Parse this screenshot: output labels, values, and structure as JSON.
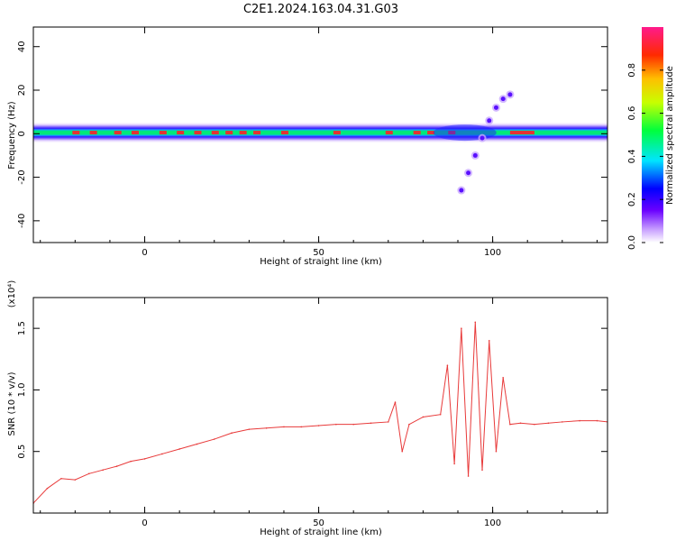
{
  "figure": {
    "title": "C2E1.2024.163.04.31.G03"
  },
  "colors": {
    "signal": "#e83a3a",
    "band_core": "#e63232",
    "band_mid": "#00e676",
    "band_edge": "#2020ff",
    "band_halo": "#c8a8ff"
  },
  "chart_data": [
    {
      "type": "heatmap",
      "title": "C2E1.2024.163.04.31.G03",
      "xlabel": "Height of straight line (km)",
      "ylabel": "Frequency (Hz)",
      "xlim": [
        -32,
        133
      ],
      "ylim": [
        -50,
        49
      ],
      "xticks": [
        "0",
        "50",
        "100"
      ],
      "xtick_values": [
        0,
        50,
        100
      ],
      "yticks": [
        "40",
        "20",
        "0",
        "-20",
        "-40"
      ],
      "ytick_values": [
        40,
        20,
        0,
        -20,
        -40
      ],
      "colorbar": {
        "label": "Normalized spectral amplitude",
        "range": [
          0,
          1
        ],
        "ticks": [
          "0.0",
          "0.2",
          "0.4",
          "0.6",
          "0.8"
        ],
        "tick_values": [
          0.0,
          0.2,
          0.4,
          0.6,
          0.8
        ],
        "colormap": "rainbow (magenta-blue-cyan-green-yellow-red-pink)"
      },
      "band": {
        "center_hz": 0.5,
        "description": "main spectral band near 0 Hz across full range; scattered oblique trace near 90-105 km",
        "oblique_trace": [
          {
            "x": 91,
            "y": -26
          },
          {
            "x": 93,
            "y": -18
          },
          {
            "x": 95,
            "y": -10
          },
          {
            "x": 97,
            "y": -2
          },
          {
            "x": 99,
            "y": 6
          },
          {
            "x": 101,
            "y": 12
          },
          {
            "x": 103,
            "y": 16
          },
          {
            "x": 105,
            "y": 18
          }
        ]
      },
      "grid": false
    },
    {
      "type": "line",
      "xlabel": "Height of straight line (km)",
      "ylabel": "SNR (10 * v/v)",
      "y_multiplier": "(x10⁴)",
      "xlim": [
        -32,
        133
      ],
      "ylim": [
        0,
        1.75
      ],
      "xticks": [
        "0",
        "50",
        "100"
      ],
      "xtick_values": [
        0,
        50,
        100
      ],
      "yticks": [
        "0.5",
        "1.0",
        "1.5"
      ],
      "ytick_values": [
        0.5,
        1.0,
        1.5
      ],
      "grid": false,
      "series": [
        {
          "color": "#e83a3a",
          "x": [
            -32,
            -28,
            -24,
            -20,
            -16,
            -12,
            -8,
            -4,
            0,
            5,
            10,
            15,
            20,
            25,
            30,
            35,
            40,
            45,
            50,
            55,
            60,
            65,
            70,
            72,
            74,
            76,
            80,
            85,
            87,
            89,
            91,
            93,
            95,
            97,
            99,
            101,
            103,
            105,
            108,
            112,
            116,
            120,
            125,
            130,
            133
          ],
          "y": [
            0.08,
            0.2,
            0.28,
            0.27,
            0.32,
            0.35,
            0.38,
            0.42,
            0.44,
            0.48,
            0.52,
            0.56,
            0.6,
            0.65,
            0.68,
            0.69,
            0.7,
            0.7,
            0.71,
            0.72,
            0.72,
            0.73,
            0.74,
            0.9,
            0.5,
            0.72,
            0.78,
            0.8,
            1.2,
            0.4,
            1.5,
            0.3,
            1.55,
            0.35,
            1.4,
            0.5,
            1.1,
            0.72,
            0.73,
            0.72,
            0.73,
            0.74,
            0.75,
            0.75,
            0.74
          ]
        }
      ]
    }
  ]
}
